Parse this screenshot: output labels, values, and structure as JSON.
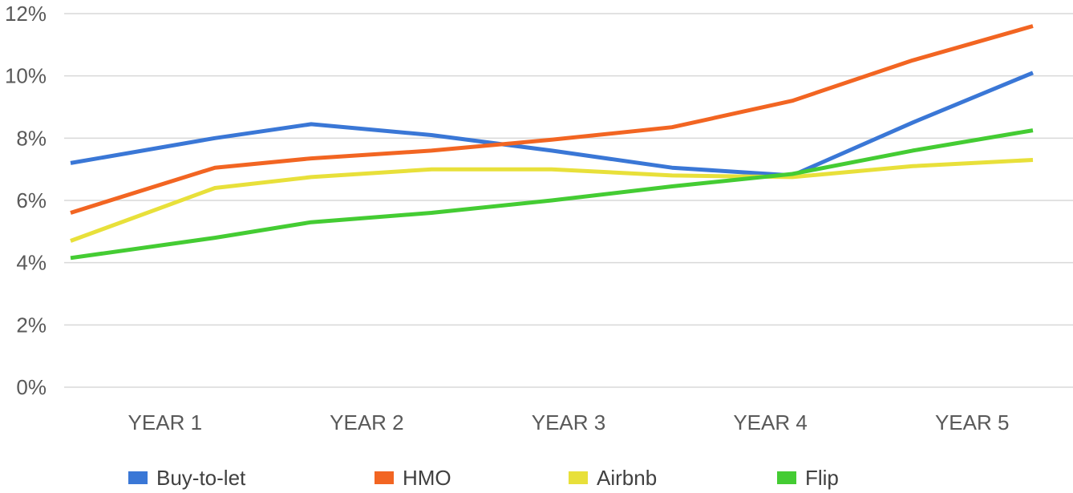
{
  "chart_data": {
    "type": "line",
    "title": "",
    "xlabel": "",
    "ylabel": "",
    "x_tick_labels": [
      "YEAR 1",
      "YEAR 2",
      "YEAR 3",
      "YEAR 4",
      "YEAR 5"
    ],
    "x_positions": [
      1,
      1.6,
      2,
      2.5,
      3,
      3.5,
      4,
      4.5,
      5
    ],
    "y_tick_labels": [
      "0%",
      "2%",
      "4%",
      "6%",
      "8%",
      "10%",
      "12%"
    ],
    "ylim": [
      0,
      12
    ],
    "grid": true,
    "legend_position": "bottom",
    "series": [
      {
        "name": "Buy-to-let",
        "color": "#3a77d6",
        "values": [
          7.2,
          8.0,
          8.45,
          8.1,
          7.6,
          7.05,
          6.8,
          8.5,
          10.1
        ]
      },
      {
        "name": "HMO",
        "color": "#f26522",
        "values": [
          5.6,
          7.05,
          7.35,
          7.6,
          7.95,
          8.35,
          9.2,
          10.5,
          11.6
        ]
      },
      {
        "name": "Airbnb",
        "color": "#e8e03a",
        "values": [
          4.7,
          6.4,
          6.75,
          7.0,
          7.0,
          6.8,
          6.75,
          7.1,
          7.3
        ]
      },
      {
        "name": "Flip",
        "color": "#44cc33",
        "values": [
          4.15,
          4.8,
          5.3,
          5.6,
          6.0,
          6.45,
          6.85,
          7.6,
          8.25
        ]
      }
    ]
  }
}
